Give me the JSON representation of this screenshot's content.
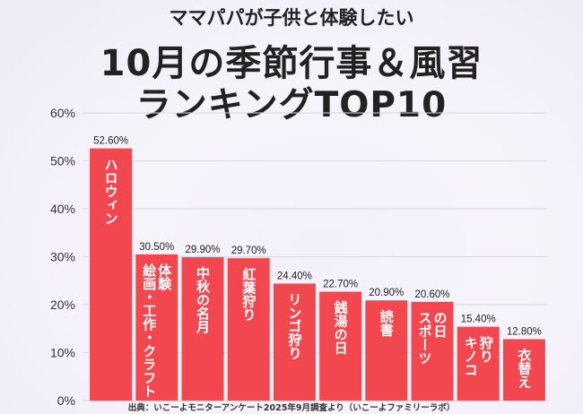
{
  "title_line1": "ママパパが子供と体験したい",
  "title_line2": "10月の季節行事＆風習",
  "title_line3": "ランキングTOP10",
  "source": "出典：いこーよモニターアンケート2025年9月調査より（いこーよファミリーラボ）",
  "colors": {
    "bar": "#f2474e",
    "bar_text": "#ffffff",
    "grid": "#d9d5e3",
    "axis_text": "#333333"
  },
  "chart_data": {
    "type": "bar",
    "title": "ママパパが子供と体験したい 10月の季節行事＆風習 ランキングTOP10",
    "xlabel": "",
    "ylabel": "",
    "ylim": [
      0,
      60
    ],
    "yticks": [
      "0%",
      "10%",
      "20%",
      "30%",
      "40%",
      "50%",
      "60%"
    ],
    "categories": [
      [
        "ハロウィン"
      ],
      [
        "絵画・工作・クラフト",
        "体験"
      ],
      [
        "中秋の名月"
      ],
      [
        "紅葉狩り"
      ],
      [
        "リンゴ狩り"
      ],
      [
        "銭湯の日"
      ],
      [
        "読書"
      ],
      [
        "スポーツ",
        "の日"
      ],
      [
        "キノコ",
        "狩り"
      ],
      [
        "衣替え"
      ]
    ],
    "values": [
      52.6,
      30.5,
      29.9,
      29.7,
      24.4,
      22.7,
      20.9,
      20.6,
      15.4,
      12.8
    ],
    "value_labels": [
      "52.60%",
      "30.50%",
      "29.90%",
      "29.70%",
      "24.40%",
      "22.70%",
      "20.90%",
      "20.60%",
      "15.40%",
      "12.80%"
    ]
  }
}
